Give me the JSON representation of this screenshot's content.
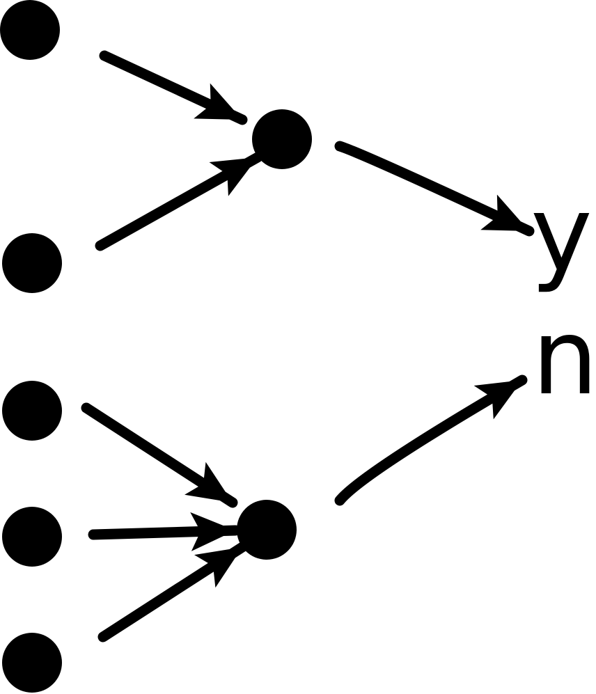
{
  "diagram": {
    "outputs": {
      "yes_label": "y",
      "no_label": "n"
    },
    "colors": {
      "ink": "#000000",
      "background": "#ffffff"
    }
  }
}
